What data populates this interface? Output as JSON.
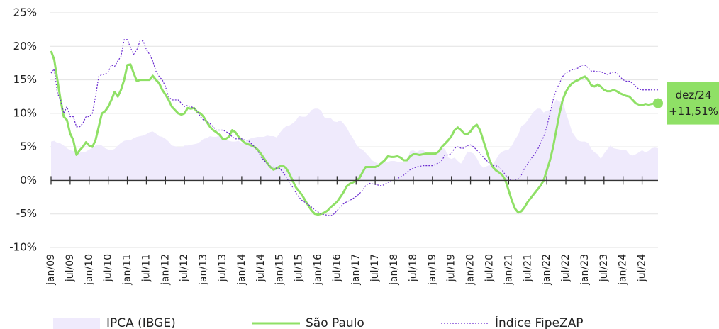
{
  "chart_data": {
    "type": "line",
    "categories": [
      "jan/09",
      null,
      null,
      null,
      null,
      null,
      "jul/09",
      null,
      null,
      null,
      null,
      null,
      "jan/10",
      null,
      null,
      null,
      null,
      null,
      "jul/10",
      null,
      null,
      null,
      null,
      null,
      "jan/11",
      null,
      null,
      null,
      null,
      null,
      "jul/11",
      null,
      null,
      null,
      null,
      null,
      "jan/12",
      null,
      null,
      null,
      null,
      null,
      "jul/12",
      null,
      null,
      null,
      null,
      null,
      "jan/13",
      null,
      null,
      null,
      null,
      null,
      "jul/13",
      null,
      null,
      null,
      null,
      null,
      "jan/14",
      null,
      null,
      null,
      null,
      null,
      "jul/14",
      null,
      null,
      null,
      null,
      null,
      "jan/15",
      null,
      null,
      null,
      null,
      null,
      "jul/15",
      null,
      null,
      null,
      null,
      null,
      "jan/16",
      null,
      null,
      null,
      null,
      null,
      "jul/16",
      null,
      null,
      null,
      null,
      null,
      "jan/17",
      null,
      null,
      null,
      null,
      null,
      "jul/17",
      null,
      null,
      null,
      null,
      null,
      "jan/18",
      null,
      null,
      null,
      null,
      null,
      "jul/18",
      null,
      null,
      null,
      null,
      null,
      "jan/19",
      null,
      null,
      null,
      null,
      null,
      "jul/19",
      null,
      null,
      null,
      null,
      null,
      "jan/20",
      null,
      null,
      null,
      null,
      null,
      "jul/20",
      null,
      null,
      null,
      null,
      null,
      "jan/21",
      null,
      null,
      null,
      null,
      null,
      "jul/21",
      null,
      null,
      null,
      null,
      null,
      "jan/22",
      null,
      null,
      null,
      null,
      null,
      "jul/22",
      null,
      null,
      null,
      null,
      null,
      "jan/23",
      null,
      null,
      null,
      null,
      null,
      "jul/23",
      null,
      null,
      null,
      null,
      null,
      "jan/24",
      null,
      null,
      null,
      null,
      null,
      "jul/24",
      null,
      null,
      null,
      null,
      null
    ],
    "series": [
      {
        "name": "IPCA (IBGE)",
        "style": "area",
        "color": "#efeafc",
        "values": [
          5.8,
          5.9,
          5.6,
          5.5,
          5.2,
          4.8,
          4.5,
          4.4,
          4.3,
          4.2,
          4.2,
          4.3,
          4.6,
          4.8,
          5.2,
          5.3,
          5.2,
          4.8,
          4.6,
          4.5,
          4.7,
          5.2,
          5.6,
          5.9,
          6.0,
          6.0,
          6.3,
          6.5,
          6.6,
          6.7,
          6.9,
          7.2,
          7.3,
          7.0,
          6.6,
          6.5,
          6.2,
          5.8,
          5.2,
          5.1,
          5.0,
          4.9,
          5.2,
          5.2,
          5.3,
          5.4,
          5.5,
          5.8,
          6.2,
          6.3,
          6.6,
          6.5,
          6.5,
          6.7,
          6.3,
          6.1,
          5.9,
          5.8,
          5.8,
          5.9,
          5.6,
          5.7,
          6.1,
          6.3,
          6.4,
          6.5,
          6.5,
          6.5,
          6.7,
          6.6,
          6.6,
          6.4,
          7.1,
          7.7,
          8.1,
          8.2,
          8.5,
          8.9,
          9.6,
          9.5,
          9.5,
          9.9,
          10.5,
          10.7,
          10.7,
          10.4,
          9.4,
          9.3,
          9.3,
          8.8,
          8.7,
          9.0,
          8.5,
          7.9,
          7.0,
          6.3,
          5.4,
          4.8,
          4.6,
          4.1,
          3.6,
          3.0,
          2.7,
          2.5,
          2.5,
          2.7,
          2.8,
          2.9,
          2.9,
          2.8,
          2.7,
          2.8,
          2.9,
          4.4,
          4.5,
          4.2,
          4.5,
          4.6,
          4.1,
          3.8,
          3.8,
          3.9,
          4.6,
          4.9,
          4.7,
          3.4,
          3.2,
          3.4,
          2.9,
          2.5,
          3.3,
          4.3,
          4.2,
          4.0,
          3.3,
          2.4,
          1.9,
          2.1,
          2.3,
          2.4,
          3.1,
          3.9,
          4.3,
          4.5,
          4.6,
          5.2,
          6.1,
          6.8,
          8.1,
          8.4,
          9.0,
          9.7,
          10.3,
          10.7,
          10.7,
          10.1,
          10.4,
          10.5,
          11.3,
          12.1,
          11.7,
          11.9,
          10.1,
          8.7,
          7.2,
          6.5,
          5.9,
          5.8,
          5.8,
          5.6,
          4.7,
          4.2,
          3.9,
          3.2,
          4.0,
          4.6,
          5.2,
          4.8,
          4.7,
          4.6,
          4.5,
          4.5,
          3.9,
          3.7,
          3.9,
          4.2,
          4.5,
          4.2,
          4.4,
          4.8,
          4.9,
          4.8
        ]
      },
      {
        "name": "São Paulo",
        "style": "solid",
        "color": "#8fe066",
        "values": [
          19.3,
          18,
          15,
          12,
          9.5,
          9,
          7,
          6,
          3.8,
          4.5,
          5,
          5.7,
          5.2,
          5,
          6,
          8,
          10,
          10.3,
          11,
          12,
          13.2,
          12.5,
          13.5,
          15,
          17.2,
          17.3,
          16,
          14.8,
          15,
          15,
          15,
          15,
          15.6,
          15,
          14.5,
          13.5,
          12.8,
          12,
          11,
          10.5,
          10,
          9.8,
          10,
          10.8,
          10.7,
          10.8,
          10.2,
          10,
          9.5,
          8.7,
          8,
          7.5,
          7.2,
          6.8,
          6.2,
          6.2,
          6.5,
          7.5,
          7.2,
          6.5,
          6,
          5.6,
          5.4,
          5.2,
          5,
          4.6,
          4,
          3.3,
          2.6,
          2,
          1.6,
          1.8,
          2.1,
          2.2,
          1.8,
          1,
          0,
          -1,
          -1.6,
          -2.2,
          -3,
          -3.8,
          -4.5,
          -5,
          -5.1,
          -5,
          -4.8,
          -4.5,
          -4,
          -3.6,
          -3.2,
          -2.5,
          -1.8,
          -0.9,
          -0.5,
          -0.3,
          0,
          0.3,
          1.2,
          2,
          2,
          2,
          2,
          2.2,
          2.6,
          3,
          3.6,
          3.5,
          3.5,
          3.6,
          3.4,
          3,
          3,
          3.6,
          3.9,
          3.9,
          3.8,
          3.9,
          4,
          4,
          4,
          4,
          4.3,
          5,
          5.5,
          6,
          6.6,
          7.5,
          7.9,
          7.5,
          7,
          6.9,
          7.3,
          8,
          8.3,
          7.5,
          6,
          4.5,
          3,
          2,
          1.5,
          1.2,
          0.8,
          0,
          -1.5,
          -3,
          -4.2,
          -4.8,
          -4.6,
          -4,
          -3.2,
          -2.6,
          -2,
          -1.4,
          -0.8,
          0,
          1.5,
          3,
          5,
          7.5,
          10,
          12,
          13.2,
          14,
          14.5,
          14.8,
          15,
          15.3,
          15.5,
          15,
          14.2,
          14,
          14.3,
          14,
          13.5,
          13.3,
          13.3,
          13.5,
          13.3,
          13,
          12.8,
          12.6,
          12.5,
          12,
          11.5,
          11.3,
          11.2,
          11.4,
          11.3,
          11.4,
          11.5,
          11.51
        ]
      },
      {
        "name": "Índice FipeZAP",
        "style": "dotted",
        "color": "#6a2bd0",
        "values": [
          16,
          16.6,
          13,
          12,
          10,
          11,
          9.5,
          9.5,
          8,
          8,
          8.5,
          9.5,
          9.5,
          10,
          12.5,
          15.5,
          15.8,
          15.8,
          16.2,
          17.2,
          17,
          17.8,
          18.5,
          21,
          21,
          19.8,
          18.8,
          19.5,
          20.8,
          20.8,
          19.5,
          18.8,
          17.8,
          16.3,
          15.5,
          15,
          14,
          12.5,
          12,
          12,
          12,
          11.5,
          11,
          11.2,
          11,
          10.8,
          10.3,
          9.5,
          9,
          8.8,
          8.5,
          8,
          7.5,
          7.5,
          7.5,
          7.3,
          7,
          6.5,
          6.2,
          6.2,
          6.2,
          6,
          6,
          5.5,
          5,
          4.5,
          3.5,
          3,
          2.5,
          2,
          2,
          1.8,
          1.8,
          1.2,
          0.5,
          -0.3,
          -1,
          -1.8,
          -2.5,
          -3,
          -3.3,
          -3.6,
          -4,
          -4.4,
          -4.7,
          -5,
          -5.1,
          -5.2,
          -5.3,
          -5,
          -4.5,
          -4,
          -3.5,
          -3.2,
          -3,
          -2.7,
          -2.4,
          -2,
          -1.5,
          -0.8,
          -0.4,
          -0.5,
          -0.6,
          -0.7,
          -0.8,
          -0.6,
          -0.3,
          0,
          0,
          0.3,
          0.5,
          0.8,
          1.2,
          1.6,
          1.8,
          2,
          2.1,
          2.2,
          2.2,
          2.2,
          2.2,
          2.4,
          2.6,
          3,
          3.8,
          3.8,
          4,
          4.8,
          5,
          4.8,
          4.8,
          5.2,
          5.3,
          5,
          4.5,
          4,
          3.5,
          3,
          2.5,
          2.2,
          2.2,
          2,
          1.5,
          0.8,
          0.3,
          0,
          0,
          0.2,
          0.8,
          1.8,
          2.5,
          3.2,
          3.8,
          4.5,
          5.5,
          6.5,
          8,
          10,
          12,
          13.5,
          14.5,
          15.5,
          16,
          16.3,
          16.5,
          16.6,
          16.8,
          17.2,
          17.2,
          16.8,
          16.3,
          16.3,
          16.2,
          16.2,
          16,
          15.8,
          16,
          16.2,
          16,
          15.5,
          15,
          14.8,
          14.8,
          14.5,
          14,
          13.6,
          13.5,
          13.5,
          13.5,
          13.5,
          13.5,
          13.5
        ]
      }
    ],
    "ylim": [
      -10,
      25
    ],
    "yticks": [
      {
        "value": -10,
        "label": "-10%"
      },
      {
        "value": -5,
        "label": "-5%"
      },
      {
        "value": 0,
        "label": "0%"
      },
      {
        "value": 5,
        "label": "5%"
      },
      {
        "value": 10,
        "label": "10%"
      },
      {
        "value": 15,
        "label": "15%"
      },
      {
        "value": 20,
        "label": "20%"
      },
      {
        "value": 25,
        "label": "25%"
      }
    ],
    "grid": true,
    "end_label": {
      "category": "dez/24",
      "value_label": "+11,51%"
    }
  }
}
